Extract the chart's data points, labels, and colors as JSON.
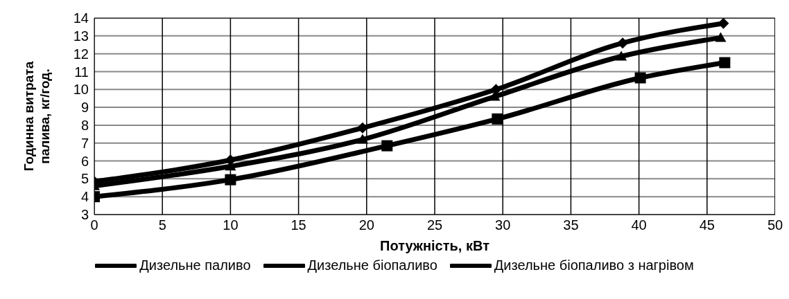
{
  "chart_data": {
    "type": "line",
    "xlabel": "Потужність, кВт",
    "ylabel": "Годинна витрата палива, кг/год.",
    "xlim": [
      0,
      50
    ],
    "xticks": [
      0,
      5,
      10,
      15,
      20,
      25,
      30,
      35,
      40,
      45,
      50
    ],
    "ylim": [
      3,
      14
    ],
    "yticks": [
      3,
      4,
      5,
      6,
      7,
      8,
      9,
      10,
      11,
      12,
      13,
      14
    ],
    "grid": true,
    "legend": "bottom",
    "line_style": "solid",
    "series": [
      {
        "name": "Дизельне паливо",
        "color": "#000000",
        "marker": "diamond",
        "x": [
          0,
          10,
          19.7,
          29.5,
          38.8,
          46.2
        ],
        "values": [
          4.85,
          6.05,
          7.85,
          10.0,
          12.6,
          13.7
        ]
      },
      {
        "name": "Дизельне біопаливо",
        "color": "#000000",
        "marker": "triangle",
        "x": [
          0,
          10,
          19.7,
          29.4,
          38.7,
          46.0
        ],
        "values": [
          4.6,
          5.7,
          7.2,
          9.6,
          11.85,
          12.9
        ]
      },
      {
        "name": "Дизельне біопаливо з нагрівом",
        "color": "#000000",
        "marker": "square",
        "x": [
          0,
          10,
          21.5,
          29.6,
          40.1,
          46.3
        ],
        "values": [
          4.0,
          4.95,
          6.85,
          8.35,
          10.65,
          11.5
        ]
      }
    ]
  }
}
